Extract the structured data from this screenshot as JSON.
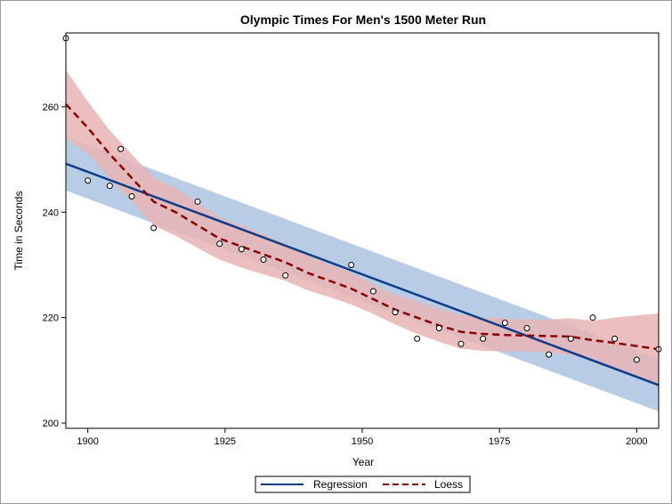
{
  "chart_data": {
    "type": "scatter",
    "title": "Olympic Times For Men's 1500 Meter Run",
    "xlabel": "Year",
    "ylabel": "Time in Seconds",
    "xlim": [
      1896,
      2004
    ],
    "ylim": [
      199,
      274
    ],
    "xticks": [
      1900,
      1925,
      1950,
      1975,
      2000
    ],
    "yticks": [
      200,
      220,
      240,
      260
    ],
    "grid": false,
    "legend_position": "bottom",
    "points": [
      {
        "x": 1896,
        "y": 273
      },
      {
        "x": 1900,
        "y": 246
      },
      {
        "x": 1904,
        "y": 245
      },
      {
        "x": 1906,
        "y": 252
      },
      {
        "x": 1908,
        "y": 243
      },
      {
        "x": 1912,
        "y": 237
      },
      {
        "x": 1920,
        "y": 242
      },
      {
        "x": 1924,
        "y": 234
      },
      {
        "x": 1928,
        "y": 233
      },
      {
        "x": 1932,
        "y": 231
      },
      {
        "x": 1936,
        "y": 228
      },
      {
        "x": 1948,
        "y": 230
      },
      {
        "x": 1952,
        "y": 225
      },
      {
        "x": 1956,
        "y": 221
      },
      {
        "x": 1960,
        "y": 216
      },
      {
        "x": 1964,
        "y": 218
      },
      {
        "x": 1968,
        "y": 215
      },
      {
        "x": 1972,
        "y": 216
      },
      {
        "x": 1976,
        "y": 219
      },
      {
        "x": 1980,
        "y": 218
      },
      {
        "x": 1984,
        "y": 213
      },
      {
        "x": 1988,
        "y": 216
      },
      {
        "x": 1992,
        "y": 220
      },
      {
        "x": 1996,
        "y": 216
      },
      {
        "x": 2000,
        "y": 212
      },
      {
        "x": 2004,
        "y": 214
      }
    ],
    "series": [
      {
        "name": "Regression",
        "style": "solid",
        "color": "#0d3d8a",
        "band_color": "#b8cce6",
        "x": [
          1896,
          2004
        ],
        "y": [
          249.2,
          207.2
        ],
        "lower": [
          244.1,
          202.2
        ],
        "upper": [
          254.3,
          212.2
        ]
      },
      {
        "name": "Loess",
        "style": "dashed",
        "color": "#8b0000",
        "band_color": "#e8b4b4",
        "x": [
          1896,
          1900,
          1904,
          1908,
          1912,
          1916,
          1920,
          1924,
          1928,
          1932,
          1936,
          1940,
          1944,
          1948,
          1952,
          1956,
          1960,
          1964,
          1968,
          1972,
          1976,
          1980,
          1984,
          1988,
          1992,
          1996,
          2000,
          2004
        ],
        "y": [
          260.5,
          256.0,
          251.0,
          246.5,
          242.0,
          240.0,
          237.5,
          235.0,
          233.5,
          232.0,
          230.5,
          228.5,
          227.0,
          225.5,
          223.5,
          221.5,
          220.0,
          218.5,
          217.3,
          216.9,
          216.7,
          216.6,
          216.5,
          216.4,
          215.7,
          215.2,
          214.6,
          214.0
        ],
        "lower": [
          254.0,
          251.0,
          246.5,
          242.0,
          237.5,
          235.5,
          233.2,
          231.0,
          229.5,
          228.2,
          227.0,
          225.2,
          223.9,
          222.5,
          220.7,
          218.7,
          216.9,
          215.4,
          214.1,
          213.7,
          213.6,
          213.6,
          213.4,
          212.9,
          212.0,
          210.4,
          208.8,
          207.2
        ],
        "upper": [
          267.0,
          261.0,
          255.5,
          251.0,
          246.5,
          244.5,
          241.8,
          239.0,
          237.5,
          235.8,
          234.0,
          231.8,
          230.1,
          228.5,
          226.3,
          224.3,
          223.1,
          221.6,
          220.5,
          220.1,
          219.8,
          219.6,
          219.6,
          219.9,
          219.4,
          220.0,
          220.4,
          220.8
        ]
      }
    ]
  }
}
